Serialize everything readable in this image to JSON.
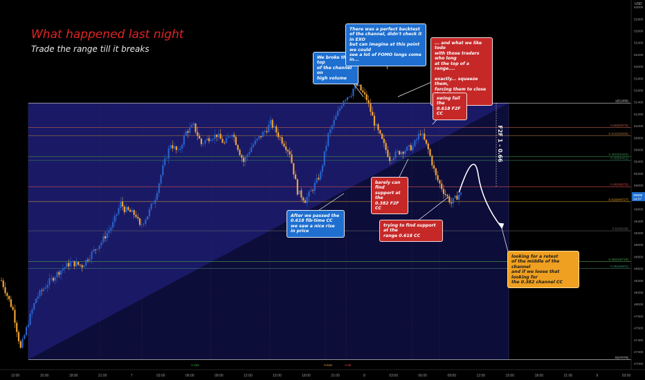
{
  "header": {
    "title": "What happened last night",
    "subtitle": "Trade the range till it breaks"
  },
  "colors": {
    "background": "#000000",
    "up_candle": "#2a62c9",
    "down_candle": "#f0a33a",
    "channel_fill": "#1c1c6e",
    "callout_blue": "#1e6fd0",
    "callout_red": "#c62828",
    "callout_orange": "#f0a020"
  },
  "callouts": [
    {
      "id": "broke-top",
      "color": "blue",
      "text": "We broke the top\nof the channel on\nhigh volume"
    },
    {
      "id": "perfect-backtest",
      "color": "blue",
      "text": "There was a perfect backtest\nof the channel, didn't check it in EXO\nbut can imagine at this point we could\nsee a lot of FOMO longs come in..."
    },
    {
      "id": "trap-longs",
      "color": "red",
      "text": "... and what we like todo\nwith those traders who long\nat the top of a range....\n\nexactly... squeeze them,\nforcing them to close their\npositions"
    },
    {
      "id": "swing-fail",
      "color": "red",
      "text": "swing fail the\n0.618 F2F CC"
    },
    {
      "id": "barely-support",
      "color": "red",
      "text": "barely can find\nsupport at the\n0.382 F2F CC"
    },
    {
      "id": "fib-time",
      "color": "blue",
      "text": "After we passed the\n0.618 fib-time CC\nwe saw a nice rise in price"
    },
    {
      "id": "range-support",
      "color": "red",
      "text": "trying to find support at the\nrange 0.618 CC"
    },
    {
      "id": "retest",
      "color": "orange",
      "text": "looking for a retest\nof the middle of the channel\nand if we loose that looking  for\nthe 0.382 channel CC"
    }
  ],
  "chart_data": {
    "type": "candlestick",
    "title": "What happened last night",
    "subtitle": "Trade the range till it breaks",
    "currency": "USD",
    "ylim": [
      46900,
      53050
    ],
    "y_ticks": [
      47000,
      47200,
      47400,
      47600,
      47800,
      48000,
      48200,
      48400,
      48600,
      48800,
      49000,
      49200,
      49400,
      49600,
      49800,
      50000,
      50200,
      50400,
      50600,
      50800,
      51000,
      51200,
      51400,
      51600,
      51800,
      52000,
      52200,
      52400,
      52600,
      52800,
      53000
    ],
    "x_ticks": [
      "12:00",
      "15:00",
      "18:00",
      "21:00",
      "7",
      "03:00",
      "06:00",
      "09:00",
      "12:00",
      "15:00",
      "18:00",
      "21:00",
      "8",
      "03:00",
      "06:00",
      "09:00",
      "12:00",
      "15:00",
      "18:00",
      "21:00",
      "9",
      "03:00"
    ],
    "current_price": {
      "label": "49805",
      "timer": "14:57",
      "value": 49805
    },
    "f2f_label": "F2F 1 - 0.66",
    "fib_time_labels": [
      "0.382",
      "0.618",
      "0.66"
    ],
    "levels": [
      {
        "label": "1(51385)",
        "value": 51385,
        "color": "#cfcfcf"
      },
      {
        "label": "0.66(50975)",
        "value": 50975,
        "color": "#b05a4a"
      },
      {
        "label": "0.618(50838)",
        "value": 50838,
        "color": "#a07040"
      },
      {
        "label": "0.382(50484)",
        "value": 50484,
        "color": "#3a8a4a"
      },
      {
        "label": "0.36(50421)",
        "value": 50421,
        "color": "#3a7a5a"
      },
      {
        "label": "0.66(49978)",
        "value": 49978,
        "color": "#d04a4a"
      },
      {
        "label": "0.618(49727)",
        "value": 49727,
        "color": "#e0a030"
      },
      {
        "label": "0.5(49236)",
        "value": 49236,
        "color": "#6a6a6a"
      },
      {
        "label": "0.382(48719)",
        "value": 48719,
        "color": "#4a9a4a"
      },
      {
        "label": "0.36(48601)",
        "value": 48601,
        "color": "#3a8a6a"
      },
      {
        "label": "0(47070)",
        "value": 47070,
        "color": "#cfcfcf"
      }
    ],
    "trend_points": [
      [
        0,
        48400
      ],
      [
        6,
        47900
      ],
      [
        10,
        47250
      ],
      [
        14,
        47700
      ],
      [
        18,
        48100
      ],
      [
        24,
        48350
      ],
      [
        30,
        48550
      ],
      [
        36,
        48700
      ],
      [
        42,
        48650
      ],
      [
        48,
        48900
      ],
      [
        52,
        49050
      ],
      [
        58,
        49350
      ],
      [
        62,
        49700
      ],
      [
        64,
        49600
      ],
      [
        70,
        49500
      ],
      [
        72,
        49300
      ],
      [
        76,
        49500
      ],
      [
        80,
        49800
      ],
      [
        84,
        50300
      ],
      [
        88,
        50700
      ],
      [
        92,
        50550
      ],
      [
        96,
        50900
      ],
      [
        100,
        51000
      ],
      [
        104,
        50700
      ],
      [
        108,
        50800
      ],
      [
        112,
        50850
      ],
      [
        116,
        50700
      ],
      [
        120,
        50900
      ],
      [
        124,
        50550
      ],
      [
        126,
        50400
      ],
      [
        130,
        50650
      ],
      [
        134,
        50800
      ],
      [
        138,
        50950
      ],
      [
        140,
        51050
      ],
      [
        144,
        50850
      ],
      [
        150,
        50550
      ],
      [
        154,
        49900
      ],
      [
        158,
        49750
      ],
      [
        162,
        49950
      ],
      [
        166,
        50200
      ],
      [
        170,
        50850
      ],
      [
        174,
        51150
      ],
      [
        178,
        51450
      ],
      [
        182,
        51550
      ],
      [
        184,
        51700
      ],
      [
        186,
        51650
      ],
      [
        190,
        51450
      ],
      [
        194,
        51050
      ],
      [
        198,
        50750
      ],
      [
        202,
        50450
      ],
      [
        206,
        50550
      ],
      [
        210,
        50600
      ],
      [
        214,
        50650
      ],
      [
        218,
        50900
      ],
      [
        222,
        50600
      ],
      [
        226,
        50150
      ],
      [
        230,
        49900
      ],
      [
        234,
        49700
      ],
      [
        238,
        49850
      ]
    ],
    "projection": [
      [
        238,
        49880
      ],
      [
        248,
        50180
      ],
      [
        254,
        49700
      ],
      [
        260,
        49300
      ]
    ]
  }
}
